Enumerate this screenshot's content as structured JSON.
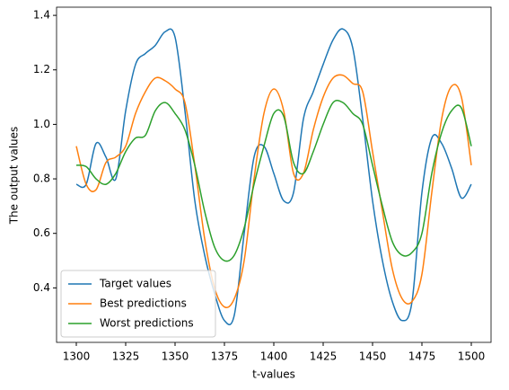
{
  "chart_data": {
    "type": "line",
    "xlabel": "t-values",
    "ylabel": "The output values",
    "x": [
      1300,
      1305,
      1310,
      1315,
      1320,
      1325,
      1330,
      1335,
      1340,
      1345,
      1350,
      1355,
      1360,
      1365,
      1370,
      1375,
      1380,
      1385,
      1390,
      1395,
      1400,
      1405,
      1410,
      1415,
      1420,
      1425,
      1430,
      1435,
      1440,
      1445,
      1450,
      1455,
      1460,
      1465,
      1470,
      1475,
      1480,
      1485,
      1490,
      1495,
      1500
    ],
    "series": [
      {
        "name": "Target values",
        "color": "#1f77b4",
        "values": [
          0.78,
          0.78,
          0.93,
          0.88,
          0.8,
          1.05,
          1.22,
          1.26,
          1.29,
          1.34,
          1.32,
          1.05,
          0.72,
          0.52,
          0.38,
          0.28,
          0.3,
          0.6,
          0.88,
          0.92,
          0.82,
          0.72,
          0.75,
          1.02,
          1.12,
          1.22,
          1.31,
          1.35,
          1.28,
          1.02,
          0.72,
          0.5,
          0.35,
          0.28,
          0.35,
          0.75,
          0.95,
          0.93,
          0.84,
          0.73,
          0.78
        ]
      },
      {
        "name": "Best predictions",
        "color": "#ff7f0e",
        "values": [
          0.92,
          0.78,
          0.76,
          0.86,
          0.88,
          0.92,
          1.04,
          1.12,
          1.17,
          1.16,
          1.13,
          1.08,
          0.85,
          0.58,
          0.4,
          0.33,
          0.36,
          0.5,
          0.8,
          1.04,
          1.13,
          1.05,
          0.82,
          0.82,
          0.98,
          1.1,
          1.17,
          1.18,
          1.15,
          1.12,
          0.9,
          0.68,
          0.47,
          0.36,
          0.35,
          0.45,
          0.75,
          1.02,
          1.14,
          1.1,
          0.85
        ]
      },
      {
        "name": "Worst predictions",
        "color": "#2ca02c",
        "values": [
          0.85,
          0.845,
          0.8,
          0.78,
          0.82,
          0.9,
          0.95,
          0.96,
          1.05,
          1.08,
          1.04,
          0.98,
          0.85,
          0.68,
          0.55,
          0.5,
          0.52,
          0.62,
          0.78,
          0.92,
          1.04,
          1.03,
          0.86,
          0.82,
          0.9,
          1.0,
          1.08,
          1.08,
          1.04,
          1.0,
          0.85,
          0.7,
          0.57,
          0.52,
          0.53,
          0.6,
          0.82,
          0.97,
          1.05,
          1.06,
          0.92
        ]
      }
    ],
    "xlim": [
      1290,
      1510
    ],
    "ylim": [
      0.2,
      1.43
    ],
    "xticks": [
      1300,
      1325,
      1350,
      1375,
      1400,
      1425,
      1450,
      1475,
      1500
    ],
    "yticks": [
      0.4,
      0.6,
      0.8,
      {
        "value": 1,
        "label": "1.0"
      },
      1.2,
      1.4
    ],
    "legend": "lower left",
    "grid": false
  }
}
